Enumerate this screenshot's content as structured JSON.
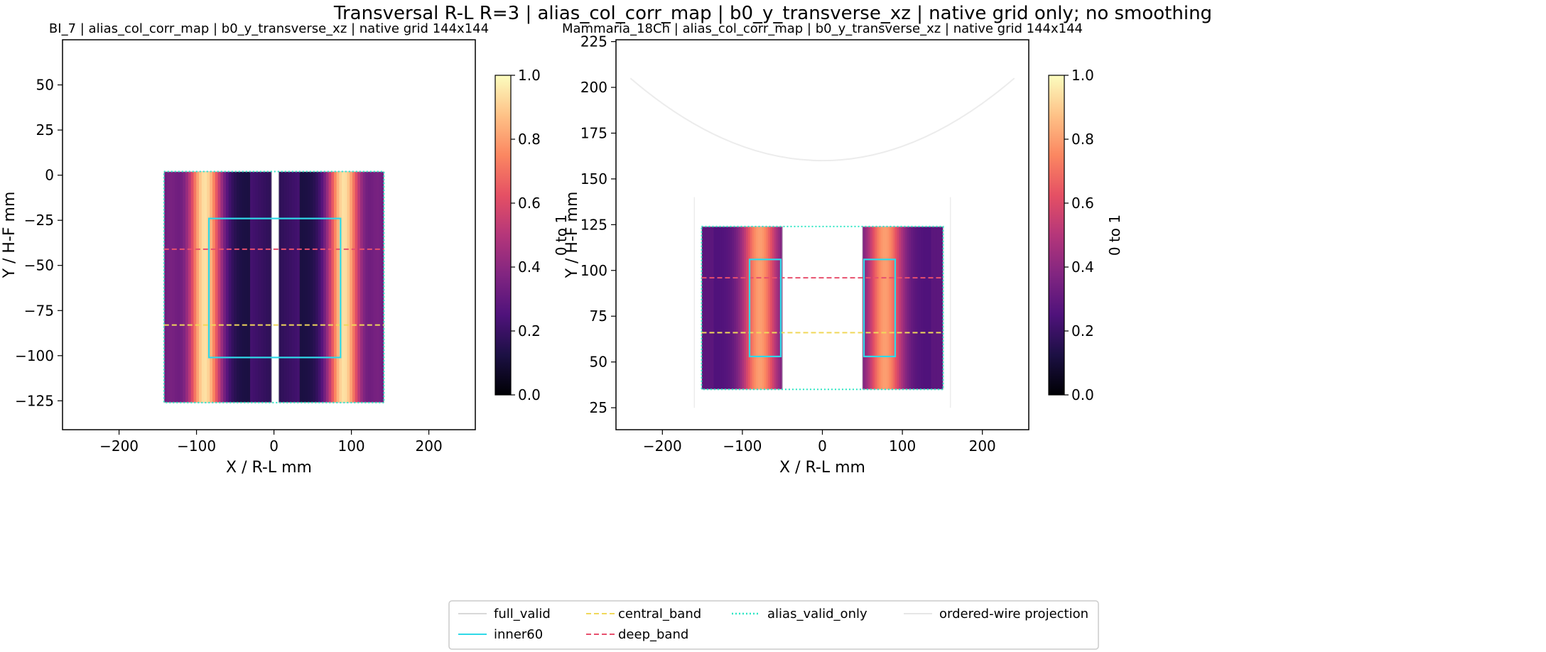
{
  "figure": {
    "suptitle": "Transversal R-L R=3 | alias_col_corr_map | b0_y_transverse_xz | native grid only; no smoothing"
  },
  "legend": {
    "placement": "bottom-center",
    "entries": [
      {
        "label": "full_valid",
        "color": "#d8d8d8",
        "style": "solid"
      },
      {
        "label": "inner60",
        "color": "#2fd9e8",
        "style": "solid"
      },
      {
        "label": "central_band",
        "color": "#f0d85a",
        "style": "dashed"
      },
      {
        "label": "deep_band",
        "color": "#e8506e",
        "style": "dashed"
      },
      {
        "label": "alias_valid_only",
        "color": "#2ee6c4",
        "style": "dotted"
      },
      {
        "label": "ordered-wire projection",
        "color": "#e6e6e6",
        "style": "solid"
      }
    ]
  },
  "chart_data": [
    {
      "type": "heatmap",
      "title": "BI_7 | alias_col_corr_map | b0_y_transverse_xz | native grid 144x144",
      "xlabel": "X / R-L mm",
      "ylabel": "Y / H-F mm",
      "xlim": [
        -273,
        260
      ],
      "ylim": [
        -141,
        75
      ],
      "xticks": [
        -200,
        -100,
        0,
        100,
        200
      ],
      "xtick_labels": [
        "−200",
        "−100",
        "0",
        "100",
        "200"
      ],
      "yticks": [
        50,
        25,
        0,
        -25,
        -50,
        -75,
        -100,
        -125
      ],
      "ytick_labels": [
        "50",
        "25",
        "0",
        "−25",
        "−50",
        "−75",
        "−100",
        "−125"
      ],
      "colormap": "magma",
      "colorbar": {
        "label": "0 to 1",
        "range": [
          0,
          1
        ],
        "ticks": [
          "0.0",
          "0.2",
          "0.4",
          "0.6",
          "0.8",
          "1.0"
        ]
      },
      "grid": false,
      "blocks": [
        {
          "x": [
            -142,
            -3
          ],
          "y": [
            -126,
            2
          ]
        },
        {
          "x": [
            6,
            142
          ],
          "y": [
            -126,
            2
          ]
        }
      ],
      "inner60": {
        "x": [
          -84,
          86
        ],
        "y": [
          -101,
          -24
        ]
      },
      "central_band_y": -83,
      "deep_band_y": -41,
      "alias_valid_only": {
        "x": [
          -142,
          142
        ],
        "y": [
          -126,
          2
        ]
      }
    },
    {
      "type": "heatmap",
      "title": "Mammaria_18Ch | alias_col_corr_map | b0_y_transverse_xz | native grid 144x144",
      "xlabel": "X / R-L mm",
      "ylabel": "Y / H-F mm",
      "xlim": [
        -258,
        258
      ],
      "ylim": [
        13,
        226
      ],
      "xticks": [
        -200,
        -100,
        0,
        100,
        200
      ],
      "xtick_labels": [
        "−200",
        "−100",
        "0",
        "100",
        "200"
      ],
      "yticks": [
        225,
        200,
        175,
        150,
        125,
        100,
        75,
        50,
        25
      ],
      "ytick_labels": [
        "225",
        "200",
        "175",
        "150",
        "125",
        "100",
        "75",
        "50",
        "25"
      ],
      "colormap": "magma",
      "colorbar": {
        "label": "0 to 1",
        "range": [
          0,
          1
        ],
        "ticks": [
          "0.0",
          "0.2",
          "0.4",
          "0.6",
          "0.8",
          "1.0"
        ]
      },
      "grid": false,
      "blocks": [
        {
          "x": [
            -151,
            -50
          ],
          "y": [
            35,
            124
          ]
        },
        {
          "x": [
            50,
            151
          ],
          "y": [
            35,
            124
          ]
        }
      ],
      "inner60_left": {
        "x": [
          -91,
          -52
        ],
        "y": [
          53,
          106
        ]
      },
      "inner60_right": {
        "x": [
          52,
          91
        ],
        "y": [
          53,
          106
        ]
      },
      "central_band_y": 66,
      "deep_band_y": 96,
      "alias_valid_only": {
        "x": [
          -151,
          151
        ],
        "y": [
          35,
          124
        ]
      }
    }
  ]
}
